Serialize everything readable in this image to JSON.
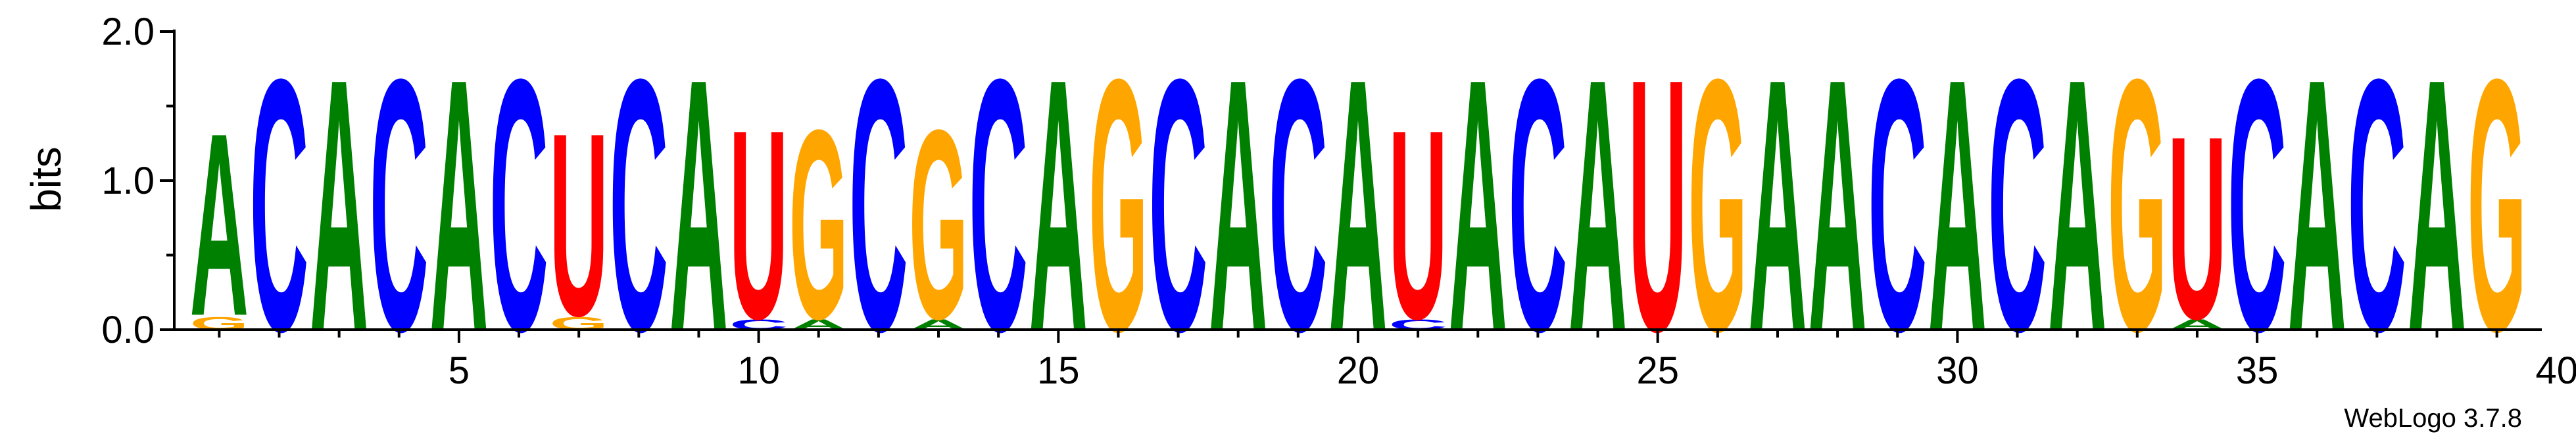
{
  "chart_data": {
    "type": "sequence-logo",
    "ylabel": "bits",
    "ylim": [
      0,
      2.0
    ],
    "y_ticks": [
      "0.0",
      "1.0",
      "2.0"
    ],
    "x_ticks": [
      "5",
      "10",
      "15",
      "20",
      "25",
      "30",
      "35",
      "40"
    ],
    "x_tick_values": [
      5,
      10,
      15,
      20,
      25,
      30,
      35,
      40
    ],
    "credit": "WebLogo 3.7.8",
    "colors": {
      "A": "#008000",
      "C": "#0000ff",
      "G": "#ffa500",
      "U": "#ff0000"
    },
    "positions": [
      [
        {
          "letter": "G",
          "bits": 0.1
        },
        {
          "letter": "A",
          "bits": 1.45
        }
      ],
      [
        {
          "letter": "C",
          "bits": 2.0
        }
      ],
      [
        {
          "letter": "A",
          "bits": 2.0
        }
      ],
      [
        {
          "letter": "C",
          "bits": 2.0
        }
      ],
      [
        {
          "letter": "A",
          "bits": 2.0
        }
      ],
      [
        {
          "letter": "C",
          "bits": 2.0
        }
      ],
      [
        {
          "letter": "G",
          "bits": 0.1
        },
        {
          "letter": "U",
          "bits": 1.45
        }
      ],
      [
        {
          "letter": "C",
          "bits": 2.0
        }
      ],
      [
        {
          "letter": "A",
          "bits": 2.0
        }
      ],
      [
        {
          "letter": "C",
          "bits": 0.08
        },
        {
          "letter": "U",
          "bits": 1.5
        }
      ],
      [
        {
          "letter": "A",
          "bits": 0.08
        },
        {
          "letter": "G",
          "bits": 1.5
        }
      ],
      [
        {
          "letter": "C",
          "bits": 2.0
        }
      ],
      [
        {
          "letter": "A",
          "bits": 0.08
        },
        {
          "letter": "G",
          "bits": 1.5
        }
      ],
      [
        {
          "letter": "C",
          "bits": 2.0
        }
      ],
      [
        {
          "letter": "A",
          "bits": 2.0
        }
      ],
      [
        {
          "letter": "G",
          "bits": 2.0
        }
      ],
      [
        {
          "letter": "C",
          "bits": 2.0
        }
      ],
      [
        {
          "letter": "A",
          "bits": 2.0
        }
      ],
      [
        {
          "letter": "C",
          "bits": 2.0
        }
      ],
      [
        {
          "letter": "A",
          "bits": 2.0
        }
      ],
      [
        {
          "letter": "C",
          "bits": 0.08
        },
        {
          "letter": "U",
          "bits": 1.5
        }
      ],
      [
        {
          "letter": "A",
          "bits": 2.0
        }
      ],
      [
        {
          "letter": "C",
          "bits": 2.0
        }
      ],
      [
        {
          "letter": "A",
          "bits": 2.0
        }
      ],
      [
        {
          "letter": "U",
          "bits": 2.0
        }
      ],
      [
        {
          "letter": "G",
          "bits": 2.0
        }
      ],
      [
        {
          "letter": "A",
          "bits": 2.0
        }
      ],
      [
        {
          "letter": "A",
          "bits": 2.0
        }
      ],
      [
        {
          "letter": "C",
          "bits": 2.0
        }
      ],
      [
        {
          "letter": "A",
          "bits": 2.0
        }
      ],
      [
        {
          "letter": "C",
          "bits": 2.0
        }
      ],
      [
        {
          "letter": "A",
          "bits": 2.0
        }
      ],
      [
        {
          "letter": "G",
          "bits": 2.0
        }
      ],
      [
        {
          "letter": "A",
          "bits": 0.08
        },
        {
          "letter": "U",
          "bits": 1.45
        }
      ],
      [
        {
          "letter": "C",
          "bits": 2.0
        }
      ],
      [
        {
          "letter": "A",
          "bits": 2.0
        }
      ],
      [
        {
          "letter": "C",
          "bits": 2.0
        }
      ],
      [
        {
          "letter": "A",
          "bits": 2.0
        }
      ],
      [
        {
          "letter": "G",
          "bits": 2.0
        }
      ]
    ]
  }
}
